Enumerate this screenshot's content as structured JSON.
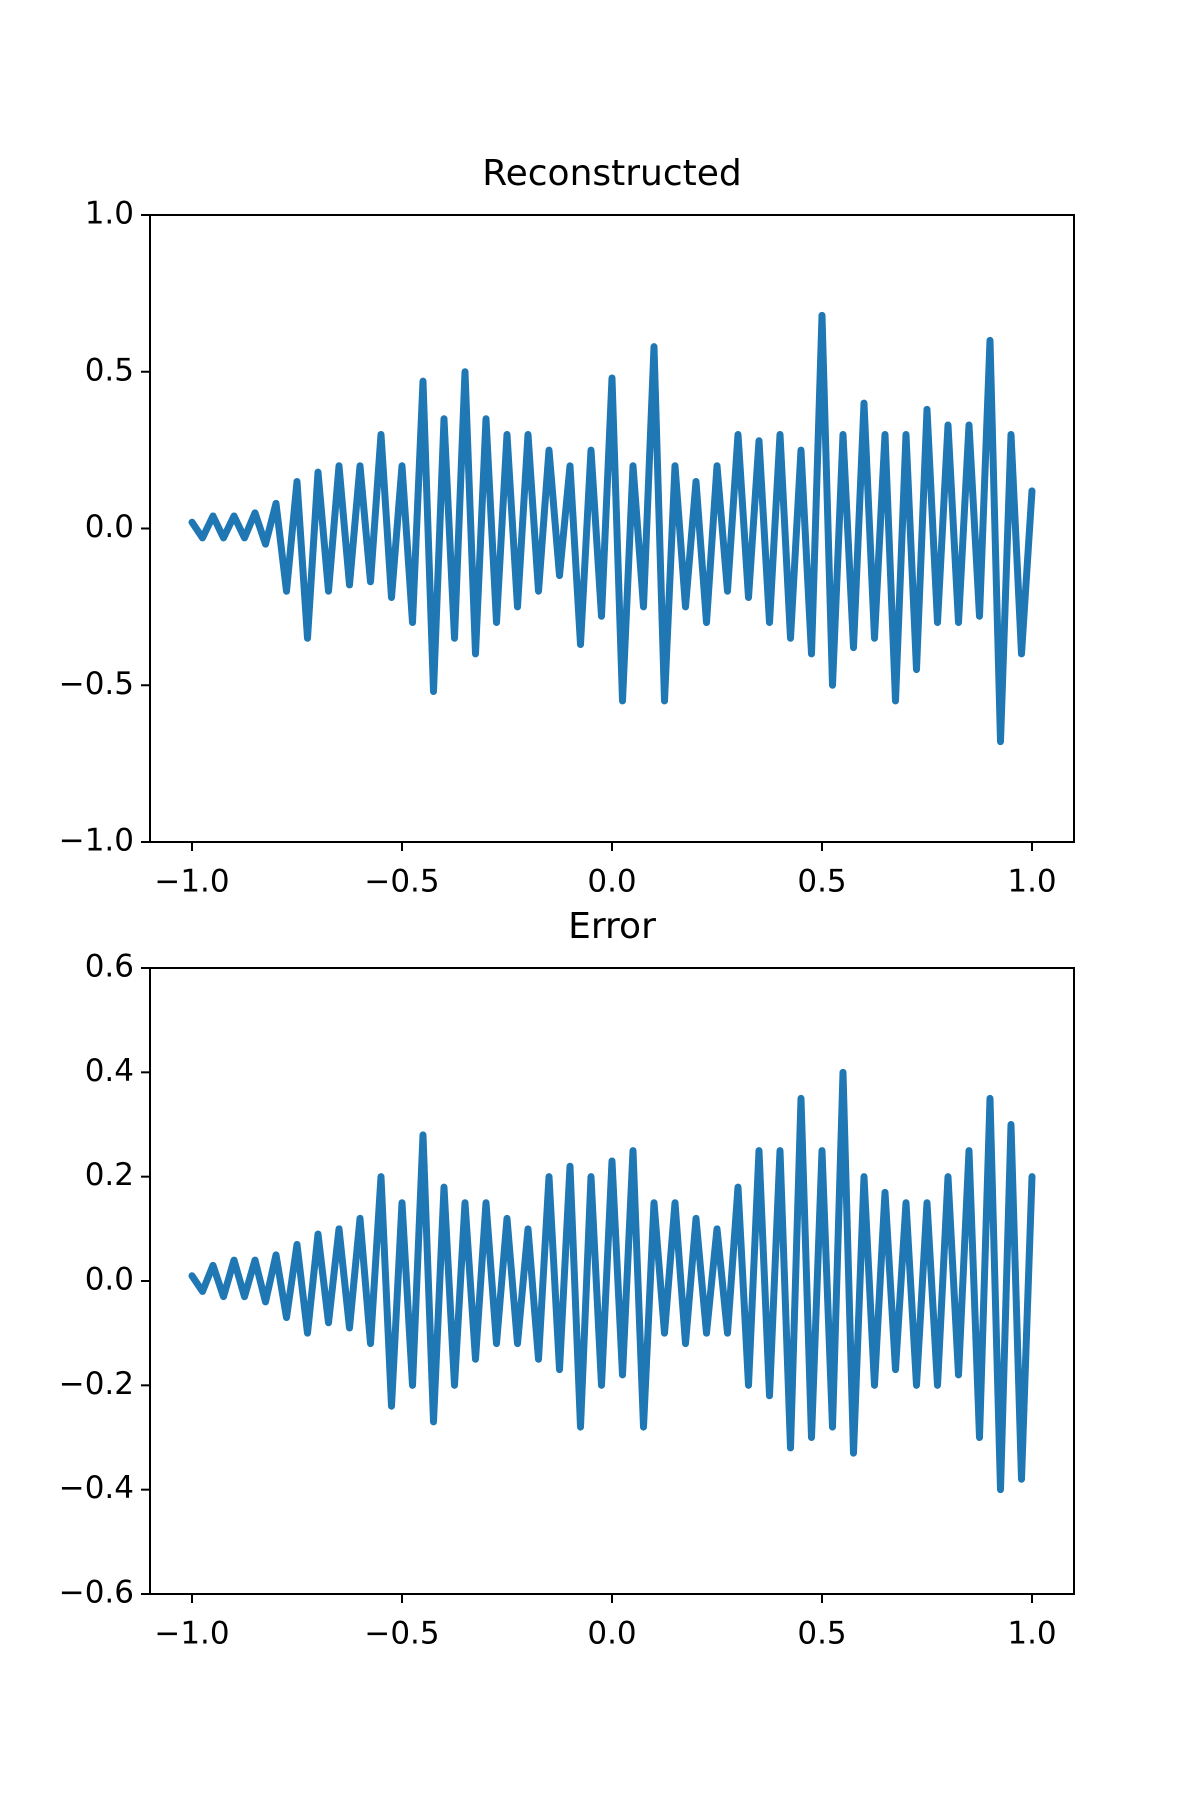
{
  "chart_data": [
    {
      "type": "line",
      "title": "Reconstructed",
      "x": [
        -1,
        -0.975,
        -0.95,
        -0.925,
        -0.9,
        -0.875,
        -0.85,
        -0.825,
        -0.8,
        -0.775,
        -0.75,
        -0.725,
        -0.7,
        -0.675,
        -0.65,
        -0.625,
        -0.6,
        -0.575,
        -0.55,
        -0.525,
        -0.5,
        -0.475,
        -0.45,
        -0.425,
        -0.4,
        -0.375,
        -0.35,
        -0.325,
        -0.3,
        -0.275,
        -0.25,
        -0.225,
        -0.2,
        -0.175,
        -0.15,
        -0.125,
        -0.1,
        -0.075,
        -0.05,
        -0.025,
        0,
        0.025,
        0.05,
        0.075,
        0.1,
        0.125,
        0.15,
        0.175,
        0.2,
        0.225,
        0.25,
        0.275,
        0.3,
        0.325,
        0.35,
        0.375,
        0.4,
        0.425,
        0.45,
        0.475,
        0.5,
        0.525,
        0.55,
        0.575,
        0.6,
        0.625,
        0.65,
        0.675,
        0.7,
        0.725,
        0.75,
        0.775,
        0.8,
        0.825,
        0.85,
        0.875,
        0.9,
        0.925,
        0.95,
        0.975,
        1
      ],
      "values": [
        0.02,
        -0.03,
        0.04,
        -0.03,
        0.04,
        -0.03,
        0.05,
        -0.05,
        0.08,
        -0.2,
        0.15,
        -0.35,
        0.18,
        -0.2,
        0.2,
        -0.18,
        0.2,
        -0.17,
        0.3,
        -0.22,
        0.2,
        -0.3,
        0.47,
        -0.52,
        0.35,
        -0.35,
        0.5,
        -0.4,
        0.35,
        -0.3,
        0.3,
        -0.25,
        0.3,
        -0.2,
        0.25,
        -0.15,
        0.2,
        -0.37,
        0.25,
        -0.28,
        0.48,
        -0.55,
        0.2,
        -0.25,
        0.58,
        -0.55,
        0.2,
        -0.25,
        0.15,
        -0.3,
        0.2,
        -0.2,
        0.3,
        -0.22,
        0.28,
        -0.3,
        0.3,
        -0.35,
        0.25,
        -0.4,
        0.68,
        -0.5,
        0.3,
        -0.38,
        0.4,
        -0.35,
        0.3,
        -0.55,
        0.3,
        -0.45,
        0.38,
        -0.3,
        0.33,
        -0.3,
        0.33,
        -0.28,
        0.6,
        -0.68,
        0.3,
        -0.4,
        0.12
      ],
      "color": "#1f77b4",
      "xlim": [
        -1.1,
        1.1
      ],
      "xticks": [
        {
          "value": -1,
          "label": "−1.0"
        },
        {
          "value": -0.5,
          "label": "−0.5"
        },
        {
          "value": 0,
          "label": "0.0"
        },
        0.5,
        {
          "value": 1,
          "label": "1.0"
        }
      ],
      "ylim": [
        -1,
        1
      ],
      "yticks": [
        {
          "value": -1,
          "label": "−1.0"
        },
        {
          "value": -0.5,
          "label": "−0.5"
        },
        {
          "value": 0,
          "label": "0.0"
        },
        0.5,
        {
          "value": 1,
          "label": "1.0"
        }
      ]
    },
    {
      "type": "line",
      "title": "Error",
      "x": [
        -1,
        -0.975,
        -0.95,
        -0.925,
        -0.9,
        -0.875,
        -0.85,
        -0.825,
        -0.8,
        -0.775,
        -0.75,
        -0.725,
        -0.7,
        -0.675,
        -0.65,
        -0.625,
        -0.6,
        -0.575,
        -0.55,
        -0.525,
        -0.5,
        -0.475,
        -0.45,
        -0.425,
        -0.4,
        -0.375,
        -0.35,
        -0.325,
        -0.3,
        -0.275,
        -0.25,
        -0.225,
        -0.2,
        -0.175,
        -0.15,
        -0.125,
        -0.1,
        -0.075,
        -0.05,
        -0.025,
        0,
        0.025,
        0.05,
        0.075,
        0.1,
        0.125,
        0.15,
        0.175,
        0.2,
        0.225,
        0.25,
        0.275,
        0.3,
        0.325,
        0.35,
        0.375,
        0.4,
        0.425,
        0.45,
        0.475,
        0.5,
        0.525,
        0.55,
        0.575,
        0.6,
        0.625,
        0.65,
        0.675,
        0.7,
        0.725,
        0.75,
        0.775,
        0.8,
        0.825,
        0.85,
        0.875,
        0.9,
        0.925,
        0.95,
        0.975,
        1
      ],
      "values": [
        0.01,
        -0.02,
        0.03,
        -0.03,
        0.04,
        -0.03,
        0.04,
        -0.04,
        0.05,
        -0.07,
        0.07,
        -0.1,
        0.09,
        -0.08,
        0.1,
        -0.09,
        0.12,
        -0.12,
        0.2,
        -0.24,
        0.15,
        -0.2,
        0.28,
        -0.27,
        0.18,
        -0.2,
        0.15,
        -0.15,
        0.15,
        -0.12,
        0.12,
        -0.12,
        0.1,
        -0.15,
        0.2,
        -0.17,
        0.22,
        -0.28,
        0.2,
        -0.2,
        0.23,
        -0.18,
        0.25,
        -0.28,
        0.15,
        -0.1,
        0.15,
        -0.12,
        0.12,
        -0.1,
        0.1,
        -0.1,
        0.18,
        -0.2,
        0.25,
        -0.22,
        0.25,
        -0.32,
        0.35,
        -0.3,
        0.25,
        -0.28,
        0.4,
        -0.33,
        0.2,
        -0.2,
        0.17,
        -0.17,
        0.15,
        -0.2,
        0.15,
        -0.2,
        0.2,
        -0.18,
        0.25,
        -0.3,
        0.35,
        -0.4,
        0.3,
        -0.38,
        0.2
      ],
      "color": "#1f77b4",
      "xlim": [
        -1.1,
        1.1
      ],
      "xticks": [
        {
          "value": -1,
          "label": "−1.0"
        },
        {
          "value": -0.5,
          "label": "−0.5"
        },
        {
          "value": 0,
          "label": "0.0"
        },
        0.5,
        {
          "value": 1,
          "label": "1.0"
        }
      ],
      "ylim": [
        -0.6,
        0.6
      ],
      "yticks": [
        {
          "value": -0.6,
          "label": "−0.6"
        },
        {
          "value": -0.4,
          "label": "−0.4"
        },
        {
          "value": -0.2,
          "label": "−0.2"
        },
        {
          "value": 0,
          "label": "0.0"
        },
        0.2,
        0.4,
        0.6
      ]
    }
  ]
}
